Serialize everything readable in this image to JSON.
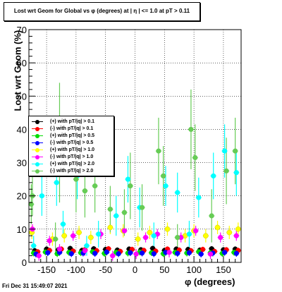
{
  "title": "Lost wrt Geom for Global vs φ (degrees) at |  η | <= 1.0 at pT > 0.11",
  "datestamp": "Fri Dec 31 15:49:07 2021",
  "chart_data": {
    "type": "scatter",
    "xlabel": "φ (degrees)",
    "ylabel": "Lost wrt Geom (%)",
    "xlim": [
      -180,
      180
    ],
    "ylim": [
      0,
      70
    ],
    "x_ticks": [
      -150,
      -100,
      -50,
      0,
      50,
      100,
      150
    ],
    "y_ticks": [
      0,
      10,
      20,
      30,
      40,
      50,
      60,
      70
    ],
    "grid": true,
    "legend_position": "left",
    "series": [
      {
        "name": "(+) with pT/|q| > 0.1",
        "color": "#000000",
        "x": [
          -170,
          -150,
          -130,
          -110,
          -90,
          -70,
          -50,
          -30,
          -10,
          10,
          30,
          50,
          70,
          90,
          110,
          130,
          150,
          170
        ],
        "y": [
          3.5,
          4.0,
          3.8,
          4.2,
          3.6,
          4.1,
          3.9,
          3.7,
          4.0,
          3.8,
          4.2,
          3.6,
          4.0,
          3.9,
          3.7,
          4.1,
          3.8,
          4.0
        ],
        "yerr": [
          0.8,
          0.8,
          0.8,
          0.8,
          0.8,
          0.8,
          0.8,
          0.8,
          0.8,
          0.8,
          0.8,
          0.8,
          0.8,
          0.8,
          0.8,
          0.8,
          0.8,
          0.8
        ]
      },
      {
        "name": "(-) with pT/|q| > 0.1",
        "color": "#ff0000",
        "x": [
          -165,
          -145,
          -125,
          -105,
          -85,
          -65,
          -45,
          -25,
          -5,
          15,
          35,
          55,
          75,
          95,
          115,
          135,
          155,
          175
        ],
        "y": [
          3.2,
          3.6,
          4.0,
          3.4,
          3.8,
          3.5,
          4.1,
          3.3,
          3.9,
          3.6,
          3.4,
          4.0,
          3.7,
          3.5,
          3.9,
          3.3,
          3.8,
          3.6
        ],
        "yerr": [
          0.8,
          0.8,
          0.8,
          0.8,
          0.8,
          0.8,
          0.8,
          0.8,
          0.8,
          0.8,
          0.8,
          0.8,
          0.8,
          0.8,
          0.8,
          0.8,
          0.8,
          0.8
        ]
      },
      {
        "name": "(+) with pT/|q| > 0.5",
        "color": "#00dd00",
        "x": [
          -172,
          -152,
          -132,
          -112,
          -92,
          -72,
          -52,
          -32,
          -12,
          8,
          28,
          48,
          68,
          88,
          108,
          128,
          148,
          168
        ],
        "y": [
          2.8,
          3.1,
          2.6,
          3.0,
          2.9,
          3.2,
          2.7,
          3.0,
          2.8,
          3.1,
          2.9,
          2.6,
          3.0,
          2.8,
          3.2,
          2.9,
          2.7,
          3.0
        ],
        "yerr": [
          1.0,
          1.0,
          1.0,
          1.0,
          1.0,
          1.0,
          1.0,
          1.0,
          1.0,
          1.0,
          1.0,
          1.0,
          1.0,
          1.0,
          1.0,
          1.0,
          1.0,
          1.0
        ]
      },
      {
        "name": "(-) with pT/|q| > 0.5",
        "color": "#0000ff",
        "x": [
          -168,
          -148,
          -128,
          -108,
          -88,
          -68,
          -48,
          -28,
          -8,
          12,
          32,
          52,
          72,
          92,
          112,
          132,
          152,
          172
        ],
        "y": [
          2.5,
          2.9,
          3.0,
          2.6,
          2.8,
          2.7,
          3.1,
          2.6,
          2.9,
          2.8,
          2.6,
          3.0,
          2.7,
          2.9,
          2.5,
          2.8,
          3.0,
          2.7
        ],
        "yerr": [
          1.0,
          1.0,
          1.0,
          1.0,
          1.0,
          1.0,
          1.0,
          1.0,
          1.0,
          1.0,
          1.0,
          1.0,
          1.0,
          1.0,
          1.0,
          1.0,
          1.0,
          1.0
        ]
      },
      {
        "name": "(+) with pT/|q| > 1.0",
        "color": "#ffff00",
        "x": [
          -175,
          -140,
          -120,
          -95,
          -75,
          -42,
          -20,
          5,
          25,
          55,
          85,
          100,
          120,
          140,
          160,
          175
        ],
        "y": [
          9.0,
          7.0,
          8.0,
          9.0,
          7.5,
          10.5,
          9.5,
          7.0,
          9.0,
          10.0,
          8.0,
          9.5,
          8.0,
          10.5,
          9.0,
          10.0
        ],
        "yerr": [
          2.0,
          2.0,
          2.0,
          2.0,
          2.0,
          2.0,
          2.0,
          2.0,
          2.0,
          2.0,
          2.0,
          2.0,
          2.0,
          2.0,
          2.0,
          2.0
        ]
      },
      {
        "name": "(-) with pT/|q| > 1.0",
        "color": "#ff00ff",
        "x": [
          -174,
          -163,
          -145,
          -128,
          -105,
          -85,
          -58,
          -38,
          -18,
          2,
          18,
          38,
          58,
          78,
          103,
          128,
          145,
          172
        ],
        "y": [
          10.0,
          2.0,
          6.5,
          4.0,
          8.0,
          3.5,
          8.5,
          2.0,
          9.5,
          2.5,
          7.5,
          8.5,
          3.0,
          7.5,
          9.5,
          2.5,
          7.5,
          8.0
        ],
        "yerr": [
          1.5,
          1.5,
          1.5,
          1.5,
          1.5,
          1.5,
          1.5,
          1.5,
          1.5,
          1.5,
          1.5,
          1.5,
          1.5,
          1.5,
          1.5,
          1.5,
          1.5,
          1.5
        ]
      },
      {
        "name": "(+) with pT/|q| > 2.0",
        "color": "#00ffff",
        "x": [
          -172,
          -158,
          -133,
          -122,
          -98,
          -82,
          -62,
          -32,
          -12,
          8,
          32,
          52,
          72,
          92,
          108,
          133,
          152,
          172
        ],
        "y": [
          5.0,
          20.0,
          24.0,
          11.5,
          26.0,
          5.0,
          8.5,
          14.0,
          25.0,
          16.5,
          8.0,
          23.0,
          21.0,
          8.5,
          19.5,
          26.0,
          33.5,
          27.0
        ],
        "yerr": [
          3.0,
          6.0,
          7.0,
          4.0,
          7.0,
          3.0,
          4.0,
          6.0,
          7.0,
          6.0,
          4.0,
          6.0,
          6.0,
          4.0,
          6.0,
          7.0,
          8.0,
          7.0
        ]
      },
      {
        "name": "(-) with pT/|q| > 2.0",
        "color": "#66cc55",
        "x": [
          -176,
          -174,
          -135,
          -128,
          -100,
          -85,
          -68,
          -42,
          -18,
          -8,
          12,
          40,
          48,
          72,
          95,
          102,
          130,
          155,
          170
        ],
        "y": [
          17.5,
          20.0,
          7.0,
          36.0,
          25.0,
          21.5,
          23.0,
          16.0,
          15.0,
          23.0,
          16.5,
          33.5,
          26.0,
          7.5,
          40.0,
          31.5,
          14.0,
          27.5,
          33.5
        ],
        "yerr": [
          6.0,
          6.0,
          5.0,
          18.0,
          10.0,
          8.0,
          8.0,
          7.0,
          7.0,
          10.0,
          7.0,
          10.0,
          9.0,
          4.0,
          12.0,
          10.0,
          8.0,
          10.0,
          10.0
        ]
      }
    ]
  }
}
